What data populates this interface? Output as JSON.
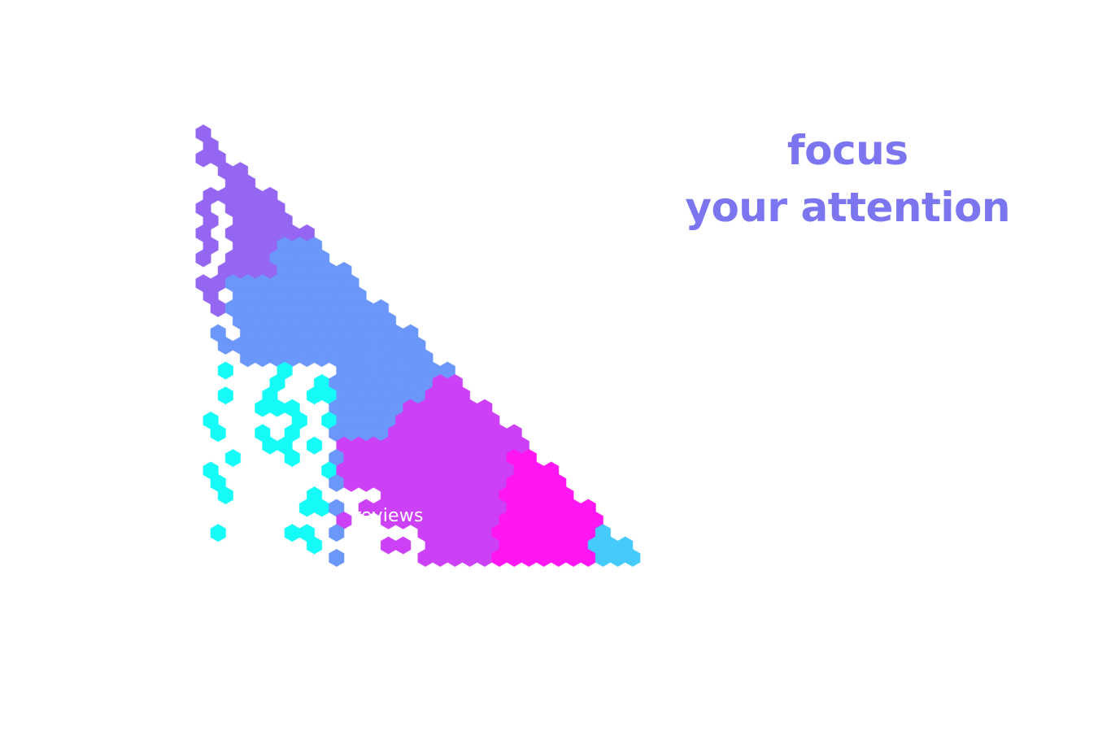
{
  "headline": {
    "line1": "focus",
    "line2": "your attention",
    "color": "#7b76f0"
  },
  "overlay_label": "reviews",
  "palette": {
    "violet": "#9466f2",
    "blue": "#6b97fb",
    "purple": "#cc40f6",
    "magenta": "#ff16f1",
    "sky": "#45cbfb",
    "cyan": "#15fbf7",
    "hole": "#ffffff"
  },
  "hex_regions": [
    "violet",
    "blue",
    "purple",
    "magenta",
    "sky",
    "cyan"
  ]
}
